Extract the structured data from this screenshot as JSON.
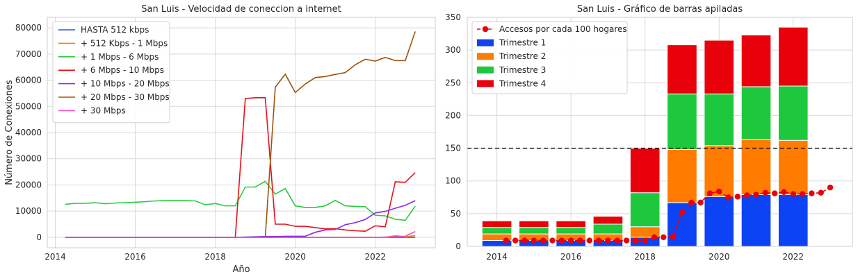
{
  "chart_data": [
    {
      "type": "line",
      "title": "San Luis - Velocidad de coneccion a internet",
      "xlabel": "Año",
      "ylabel": "Número de Conexiones",
      "xlim": [
        2013.8,
        2023.5
      ],
      "ylim": [
        -4000,
        84000
      ],
      "xticks": [
        2014,
        2016,
        2018,
        2020,
        2022
      ],
      "yticks": [
        0,
        10000,
        20000,
        30000,
        40000,
        50000,
        60000,
        70000,
        80000
      ],
      "grid": true,
      "legend_position": "top-left",
      "x": [
        2014.25,
        2014.5,
        2014.75,
        2015.0,
        2015.25,
        2015.5,
        2015.75,
        2016.0,
        2016.25,
        2016.5,
        2016.75,
        2017.0,
        2017.25,
        2017.5,
        2017.75,
        2018.0,
        2018.25,
        2018.5,
        2018.75,
        2019.0,
        2019.25,
        2019.5,
        2019.75,
        2020.0,
        2020.25,
        2020.5,
        2020.75,
        2021.0,
        2021.25,
        2021.5,
        2021.75,
        2022.0,
        2022.25,
        2022.5,
        2022.75,
        2023.0
      ],
      "series": [
        {
          "name": "HASTA 512 kbps",
          "color": "#1f5bd6",
          "values": [
            0,
            0,
            0,
            0,
            0,
            0,
            0,
            0,
            0,
            0,
            0,
            0,
            0,
            0,
            0,
            0,
            0,
            0,
            0,
            0,
            0,
            0,
            0,
            0,
            0,
            0,
            0,
            0,
            0,
            0,
            0,
            0,
            0,
            0,
            0,
            0
          ]
        },
        {
          "name": "+ 512 Kbps - 1 Mbps",
          "color": "#ff7f0e",
          "values": [
            0,
            0,
            0,
            0,
            0,
            0,
            0,
            0,
            0,
            0,
            0,
            0,
            0,
            0,
            0,
            0,
            0,
            0,
            0,
            0,
            0,
            0,
            0,
            0,
            0,
            0,
            0,
            0,
            0,
            0,
            0,
            0,
            0,
            600,
            200,
            600
          ]
        },
        {
          "name": "+ 1 Mbps - 6 Mbps",
          "color": "#2bc940",
          "values": [
            12600,
            13000,
            13000,
            13200,
            12800,
            13100,
            13200,
            13400,
            13600,
            13900,
            14000,
            14000,
            14000,
            13900,
            12400,
            12900,
            12000,
            12000,
            19200,
            19200,
            21400,
            16500,
            18600,
            12000,
            11400,
            11400,
            12000,
            14100,
            12000,
            11800,
            11700,
            8400,
            8200,
            6900,
            6500,
            11900
          ]
        },
        {
          "name": "+ 6 Mbps - 10 Mbps",
          "color": "#e8101a",
          "values": [
            0,
            0,
            0,
            0,
            0,
            0,
            0,
            0,
            0,
            0,
            0,
            0,
            0,
            0,
            0,
            0,
            0,
            0,
            53000,
            53300,
            53300,
            5000,
            5000,
            4200,
            4200,
            3700,
            3200,
            3300,
            2800,
            2500,
            2300,
            4400,
            4000,
            21200,
            21000,
            24700
          ]
        },
        {
          "name": "+ 10 Mbps - 20 Mbps",
          "color": "#8a2be2",
          "values": [
            0,
            0,
            0,
            0,
            0,
            0,
            0,
            0,
            0,
            0,
            0,
            0,
            0,
            0,
            0,
            0,
            0,
            0,
            100,
            200,
            300,
            300,
            400,
            400,
            400,
            1900,
            2800,
            3000,
            4800,
            5600,
            6800,
            9300,
            9900,
            11100,
            12200,
            14000
          ]
        },
        {
          "name": "+ 20 Mbps - 30 Mbps",
          "color": "#a0520c",
          "values": [
            null,
            null,
            null,
            null,
            null,
            null,
            null,
            null,
            null,
            null,
            null,
            null,
            null,
            null,
            null,
            null,
            null,
            null,
            null,
            null,
            0,
            57300,
            62300,
            55300,
            58500,
            61000,
            61400,
            62200,
            62900,
            65900,
            68000,
            67300,
            68700,
            67500,
            67500,
            78600
          ]
        },
        {
          "name": "+ 30 Mbps",
          "color": "#f24ebd",
          "values": [
            0,
            0,
            0,
            0,
            0,
            0,
            0,
            0,
            0,
            0,
            0,
            0,
            0,
            0,
            0,
            0,
            0,
            0,
            0,
            0,
            0,
            0,
            0,
            0,
            0,
            0,
            0,
            0,
            0,
            0,
            0,
            0,
            100,
            300,
            400,
            2200
          ]
        }
      ]
    },
    {
      "type": "bar",
      "title": "San Luis - Gráfico de barras apiladas",
      "xlim": [
        2013.2,
        2023.6
      ],
      "ylim": [
        0,
        350
      ],
      "xticks": [
        2014,
        2016,
        2018,
        2020,
        2022
      ],
      "yticks": [
        0,
        50,
        100,
        150,
        200,
        250,
        300,
        350
      ],
      "grid": true,
      "legend_position": "top-left",
      "reference_line": 150,
      "categories": [
        2014,
        2015,
        2016,
        2017,
        2018,
        2019,
        2020,
        2021,
        2022
      ],
      "series": [
        {
          "name": "Trimestre 1",
          "color": "#0b43f5",
          "values": [
            9,
            9,
            9,
            9,
            14,
            67,
            76,
            79,
            79
          ]
        },
        {
          "name": "Trimestre 2",
          "color": "#ff7c00",
          "values": [
            10,
            10,
            10,
            10,
            16,
            81,
            78,
            84,
            83
          ]
        },
        {
          "name": "Trimestre 3",
          "color": "#1ec83c",
          "values": [
            10,
            10,
            10,
            15,
            52,
            85,
            79,
            81,
            83
          ]
        },
        {
          "name": "Trimestre 4",
          "color": "#e8000b",
          "values": [
            10,
            10,
            10,
            12,
            68,
            75,
            82,
            79,
            90
          ]
        }
      ],
      "line_series": {
        "name": "Accesos por cada 100 hogares",
        "color": "#e8000b",
        "x": [
          2014.25,
          2014.5,
          2014.75,
          2015.0,
          2015.25,
          2015.5,
          2015.75,
          2016.0,
          2016.25,
          2016.5,
          2016.75,
          2017.0,
          2017.25,
          2017.5,
          2017.75,
          2018.0,
          2018.25,
          2018.5,
          2018.75,
          2019.0,
          2019.25,
          2019.5,
          2019.75,
          2020.0,
          2020.25,
          2020.5,
          2020.75,
          2021.0,
          2021.25,
          2021.5,
          2021.75,
          2022.0,
          2022.25,
          2022.5,
          2022.75,
          2023.0
        ],
        "values": [
          9,
          9,
          9,
          9,
          9,
          9,
          9,
          9,
          9,
          9,
          9,
          9,
          9,
          9,
          9,
          9,
          14,
          14,
          15,
          52,
          67,
          67,
          81,
          84,
          75,
          76,
          78,
          79,
          82,
          81,
          83,
          80,
          80,
          81,
          82,
          90
        ]
      }
    }
  ]
}
